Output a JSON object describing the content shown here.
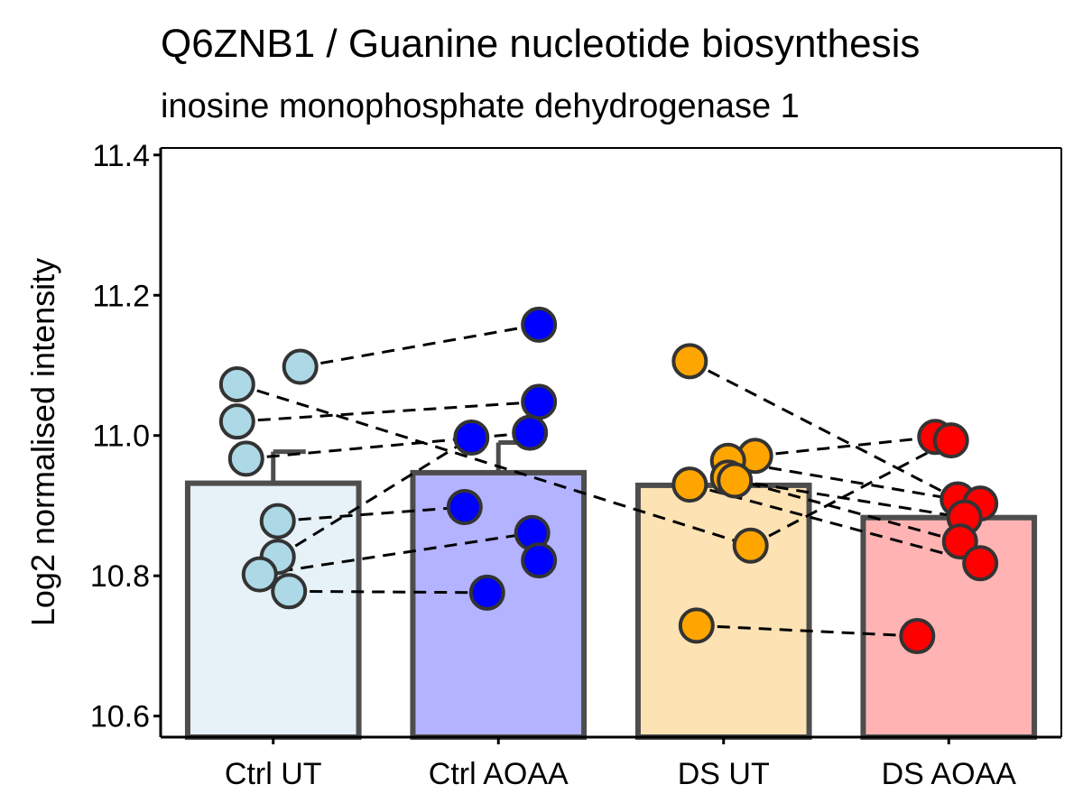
{
  "chart_data": {
    "type": "bar",
    "title": "Q6ZNB1 / Guanine nucleotide biosynthesis",
    "subtitle": "inosine monophosphate dehydrogenase 1",
    "xlabel": "",
    "ylabel": "Log2 normalised intensity",
    "ylim": [
      10.57,
      11.41
    ],
    "yticks": [
      "10.6",
      "10.8",
      "11.0",
      "11.2",
      "11.4"
    ],
    "grid": false,
    "legend": "none",
    "categories": [
      "Ctrl UT",
      "Ctrl AOAA",
      "DS UT",
      "DS AOAA"
    ],
    "means": [
      10.932,
      10.947,
      10.929,
      10.883
    ],
    "errors": [
      0.045,
      0.043,
      0.037,
      0.03
    ],
    "bar_fill_colors": [
      "#e6f1f8",
      "#b3b3ff",
      "#fde2b3",
      "#ffb3b3"
    ],
    "point_colors": [
      "#add8e6",
      "#0000ff",
      "#ffa500",
      "#ff0000"
    ],
    "bar_edge_color": "#4d4d4d",
    "points": [
      [
        11.098,
        11.073,
        11.02,
        10.967,
        10.878,
        10.827,
        10.802,
        10.778
      ],
      [
        11.158,
        11.048,
        11.004,
        10.997,
        10.898,
        10.861,
        10.822,
        10.776
      ],
      [
        11.106,
        10.971,
        10.964,
        10.94,
        10.936,
        10.93,
        10.843,
        10.729
      ],
      [
        10.998,
        10.993,
        10.909,
        10.903,
        10.883,
        10.849,
        10.818,
        10.714
      ]
    ],
    "point_jitter": [
      [
        0.12,
        -0.16,
        -0.16,
        -0.12,
        0.02,
        0.02,
        -0.06,
        0.07
      ],
      [
        0.18,
        0.18,
        0.14,
        -0.12,
        -0.15,
        0.15,
        0.18,
        -0.05
      ],
      [
        -0.15,
        0.14,
        0.02,
        0.02,
        0.05,
        -0.15,
        0.12,
        -0.12
      ],
      [
        -0.06,
        0.01,
        0.04,
        0.14,
        0.07,
        0.05,
        0.14,
        -0.14
      ]
    ],
    "pairs": [
      [
        [
          0,
          0
        ],
        [
          1,
          0
        ]
      ],
      [
        [
          0,
          1
        ],
        [
          2,
          6
        ]
      ],
      [
        [
          0,
          2
        ],
        [
          1,
          1
        ]
      ],
      [
        [
          0,
          3
        ],
        [
          1,
          2
        ]
      ],
      [
        [
          0,
          4
        ],
        [
          1,
          4
        ]
      ],
      [
        [
          0,
          5
        ],
        [
          1,
          3
        ]
      ],
      [
        [
          0,
          6
        ],
        [
          1,
          5
        ]
      ],
      [
        [
          0,
          7
        ],
        [
          1,
          7
        ]
      ],
      [
        [
          2,
          0
        ],
        [
          3,
          2
        ]
      ],
      [
        [
          2,
          1
        ],
        [
          3,
          0
        ]
      ],
      [
        [
          2,
          2
        ],
        [
          3,
          3
        ]
      ],
      [
        [
          2,
          3
        ],
        [
          3,
          5
        ]
      ],
      [
        [
          2,
          4
        ],
        [
          3,
          4
        ]
      ],
      [
        [
          2,
          5
        ],
        [
          3,
          6
        ]
      ],
      [
        [
          2,
          6
        ],
        [
          3,
          1
        ]
      ],
      [
        [
          2,
          7
        ],
        [
          3,
          7
        ]
      ]
    ]
  }
}
